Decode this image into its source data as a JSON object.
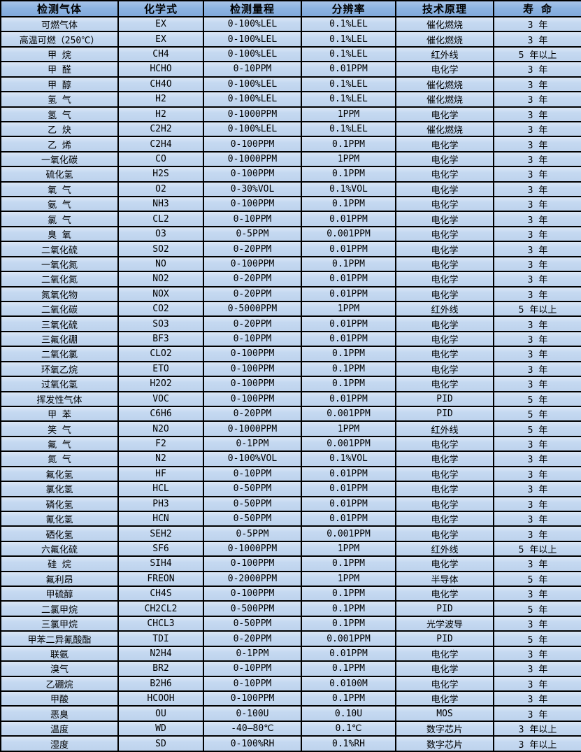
{
  "colors": {
    "header_bg": "#8db4e2",
    "row_bg": "#c5d9f1",
    "border": "#000000",
    "text": "#000000"
  },
  "table": {
    "columns": [
      {
        "key": "gas",
        "label": "检测气体"
      },
      {
        "key": "formula",
        "label": "化学式"
      },
      {
        "key": "range",
        "label": "检测量程"
      },
      {
        "key": "resolution",
        "label": "分辨率"
      },
      {
        "key": "principle",
        "label": "技术原理"
      },
      {
        "key": "lifespan",
        "label": "寿 命"
      }
    ],
    "rows": [
      [
        "可燃气体",
        "EX",
        "0-100%LEL",
        "0.1%LEL",
        "催化燃烧",
        "3 年"
      ],
      [
        "高温可燃（250℃）",
        "EX",
        "0-100%LEL",
        "0.1%LEL",
        "催化燃烧",
        "3 年"
      ],
      [
        "甲 烷",
        "CH4",
        "0-100%LEL",
        "0.1%LEL",
        "红外线",
        "5 年以上"
      ],
      [
        "甲 醛",
        "HCHO",
        "0-10PPM",
        "0.01PPM",
        "电化学",
        "3 年"
      ],
      [
        "甲 醇",
        "CH4O",
        "0-100%LEL",
        "0.1%LEL",
        "催化燃烧",
        "3 年"
      ],
      [
        "氢 气",
        "H2",
        "0-100%LEL",
        "0.1%LEL",
        "催化燃烧",
        "3 年"
      ],
      [
        "氢 气",
        "H2",
        "0-1000PPM",
        "1PPM",
        "电化学",
        "3 年"
      ],
      [
        "乙 炔",
        "C2H2",
        "0-100%LEL",
        "0.1%LEL",
        "催化燃烧",
        "3 年"
      ],
      [
        "乙 烯",
        "C2H4",
        "0-100PPM",
        "0.1PPM",
        "电化学",
        "3 年"
      ],
      [
        "一氧化碳",
        "CO",
        "0-1000PPM",
        "1PPM",
        "电化学",
        "3 年"
      ],
      [
        "硫化氢",
        "H2S",
        "0-100PPM",
        "0.1PPM",
        "电化学",
        "3 年"
      ],
      [
        "氧 气",
        "O2",
        "0-30%VOL",
        "0.1%VOL",
        "电化学",
        "3 年"
      ],
      [
        "氨 气",
        "NH3",
        "0-100PPM",
        "0.1PPM",
        "电化学",
        "3 年"
      ],
      [
        "氯 气",
        "CL2",
        "0-10PPM",
        "0.01PPM",
        "电化学",
        "3 年"
      ],
      [
        "臭 氧",
        "O3",
        "0-5PPM",
        "0.001PPM",
        "电化学",
        "3 年"
      ],
      [
        "二氧化硫",
        "SO2",
        "0-20PPM",
        "0.01PPM",
        "电化学",
        "3 年"
      ],
      [
        "一氧化氮",
        "NO",
        "0-100PPM",
        "0.1PPM",
        "电化学",
        "3 年"
      ],
      [
        "二氧化氮",
        "NO2",
        "0-20PPM",
        "0.01PPM",
        "电化学",
        "3 年"
      ],
      [
        "氮氧化物",
        "NOX",
        "0-20PPM",
        "0.01PPM",
        "电化学",
        "3 年"
      ],
      [
        "二氧化碳",
        "CO2",
        "0-5000PPM",
        "1PPM",
        "红外线",
        "5 年以上"
      ],
      [
        "三氧化硫",
        "SO3",
        "0-20PPM",
        "0.01PPM",
        "电化学",
        "3 年"
      ],
      [
        "三氟化硼",
        "BF3",
        "0-10PPM",
        "0.01PPM",
        "电化学",
        "3 年"
      ],
      [
        "二氧化氯",
        "CLO2",
        "0-100PPM",
        "0.1PPM",
        "电化学",
        "3 年"
      ],
      [
        "环氧乙烷",
        "ETO",
        "0-100PPM",
        "0.1PPM",
        "电化学",
        "3 年"
      ],
      [
        "过氧化氢",
        "H2O2",
        "0-100PPM",
        "0.1PPM",
        "电化学",
        "3 年"
      ],
      [
        "挥发性气体",
        "VOC",
        "0-100PPM",
        "0.01PPM",
        "PID",
        "5 年"
      ],
      [
        "甲 苯",
        "C6H6",
        "0-20PPM",
        "0.001PPM",
        "PID",
        "5 年"
      ],
      [
        "笑 气",
        "N2O",
        "0-1000PPM",
        "1PPM",
        "红外线",
        "5 年"
      ],
      [
        "氟 气",
        "F2",
        "0-1PPM",
        "0.001PPM",
        "电化学",
        "3 年"
      ],
      [
        "氮 气",
        "N2",
        "0-100%VOL",
        "0.1%VOL",
        "电化学",
        "3 年"
      ],
      [
        "氟化氢",
        "HF",
        "0-10PPM",
        "0.01PPM",
        "电化学",
        "3 年"
      ],
      [
        "氯化氢",
        "HCL",
        "0-50PPM",
        "0.01PPM",
        "电化学",
        "3 年"
      ],
      [
        "磷化氢",
        "PH3",
        "0-50PPM",
        "0.01PPM",
        "电化学",
        "3 年"
      ],
      [
        "氰化氢",
        "HCN",
        "0-50PPM",
        "0.01PPM",
        "电化学",
        "3 年"
      ],
      [
        "硒化氢",
        "SEH2",
        "0-5PPM",
        "0.001PPM",
        "电化学",
        "3 年"
      ],
      [
        "六氟化硫",
        "SF6",
        "0-1000PPM",
        "1PPM",
        "红外线",
        "5 年以上"
      ],
      [
        "硅 烷",
        "SIH4",
        "0-100PPM",
        "0.1PPM",
        "电化学",
        "3 年"
      ],
      [
        "氟利昂",
        "FREON",
        "0-2000PPM",
        "1PPM",
        "半导体",
        "5 年"
      ],
      [
        "甲硫醇",
        "CH4S",
        "0-100PPM",
        "0.1PPM",
        "电化学",
        "3 年"
      ],
      [
        "二氯甲烷",
        "CH2CL2",
        "0-500PPM",
        "0.1PPM",
        "PID",
        "5 年"
      ],
      [
        "三氯甲烷",
        "CHCL3",
        "0-50PPM",
        "0.1PPM",
        "光学波导",
        "3 年"
      ],
      [
        "甲苯二异氰酸酯",
        "TDI",
        "0-20PPM",
        "0.001PPM",
        "PID",
        "5 年"
      ],
      [
        "联氨",
        "N2H4",
        "0-1PPM",
        "0.01PPM",
        "电化学",
        "3 年"
      ],
      [
        "溴气",
        "BR2",
        "0-10PPM",
        "0.1PPM",
        "电化学",
        "3 年"
      ],
      [
        "乙硼烷",
        "B2H6",
        "0-10PPM",
        "0.0100M",
        "电化学",
        "3 年"
      ],
      [
        "甲酸",
        "HCOOH",
        "0-100PPM",
        "0.1PPM",
        "电化学",
        "3 年"
      ],
      [
        "恶臭",
        "OU",
        "0-100U",
        "0.10U",
        "MOS",
        "3 年"
      ],
      [
        "温度",
        "WD",
        "-40—80℃",
        "0.1℃",
        "数字芯片",
        "3 年以上"
      ],
      [
        "湿度",
        "SD",
        "0-100%RH",
        "0.1%RH",
        "数字芯片",
        "3 年以上"
      ]
    ]
  }
}
